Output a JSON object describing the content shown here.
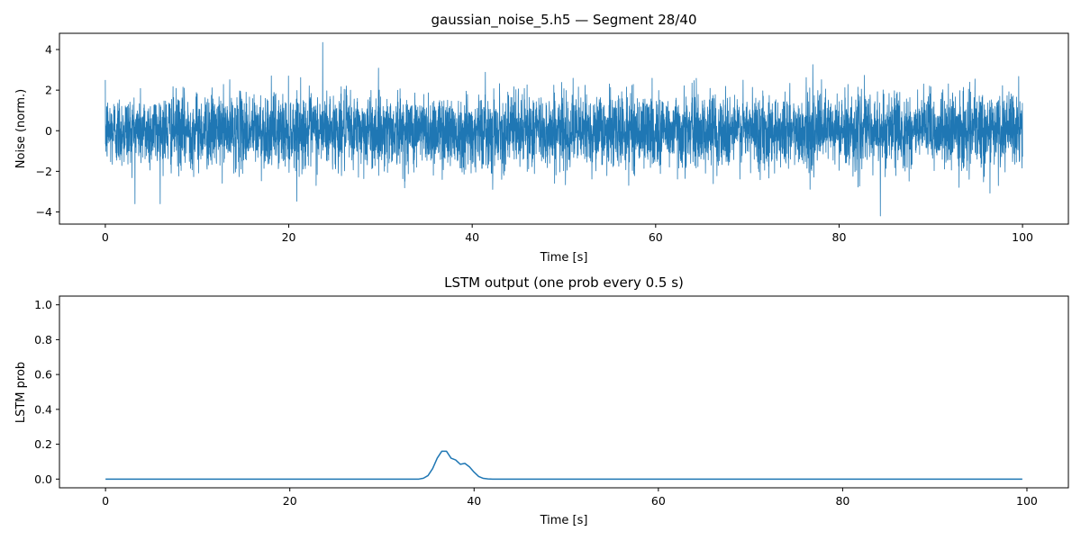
{
  "chart_data": [
    {
      "type": "line",
      "title": "gaussian_noise_5.h5 — Segment 28/40",
      "xlabel": "Time [s]",
      "ylabel": "Noise (norm.)",
      "xlim": [
        -5,
        105
      ],
      "ylim": [
        -4.6,
        4.8
      ],
      "xticks": [
        0,
        20,
        40,
        60,
        80,
        100
      ],
      "yticks": [
        -4,
        -2,
        0,
        2,
        4
      ],
      "line_color": "#1f77b4",
      "signal": {
        "kind": "gaussian-noise",
        "x_start": 0,
        "x_end": 100,
        "std": 0.9,
        "max": 4.35,
        "max_at": 23.7,
        "min": -4.2,
        "min_at": 84.5
      }
    },
    {
      "type": "line",
      "title": "LSTM output (one prob every 0.5 s)",
      "xlabel": "Time [s]",
      "ylabel": "LSTM prob",
      "xlim": [
        -5,
        104.5
      ],
      "ylim": [
        -0.05,
        1.05
      ],
      "xticks": [
        0,
        20,
        40,
        60,
        80,
        100
      ],
      "yticks": [
        0.0,
        0.2,
        0.4,
        0.6,
        0.8,
        1.0
      ],
      "line_color": "#1f77b4",
      "series": [
        {
          "x": [
            0,
            34,
            34.5,
            35,
            35.5,
            36,
            36.5,
            37,
            37.5,
            38,
            38.5,
            39,
            39.5,
            40,
            40.5,
            41,
            41.5,
            42,
            99.5
          ],
          "values": [
            0.0,
            0.0,
            0.005,
            0.02,
            0.06,
            0.12,
            0.16,
            0.16,
            0.12,
            0.11,
            0.085,
            0.09,
            0.07,
            0.04,
            0.015,
            0.004,
            0.001,
            0.0,
            0.0
          ]
        }
      ]
    }
  ]
}
